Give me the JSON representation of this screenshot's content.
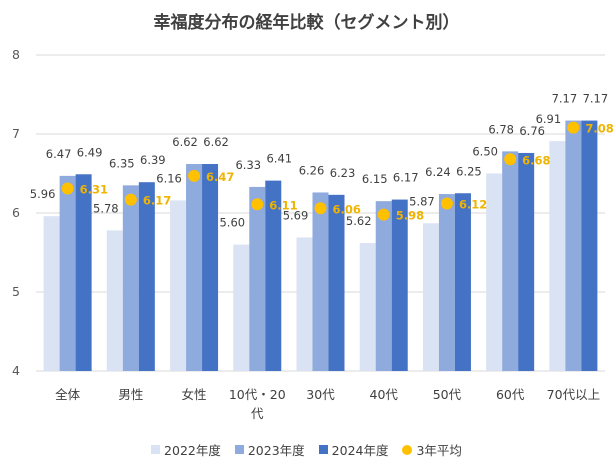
{
  "chart_data": {
    "type": "bar",
    "title": "幸福度分布の経年比較（セグメント別）",
    "categories": [
      "全体",
      "男性",
      "女性",
      "10代・20代",
      "30代",
      "40代",
      "50代",
      "60代",
      "70代以上"
    ],
    "series": [
      {
        "name": "2022年度",
        "color": "#dae3f3",
        "values": [
          5.96,
          5.78,
          6.16,
          5.6,
          5.69,
          5.62,
          5.87,
          6.5,
          6.91
        ]
      },
      {
        "name": "2023年度",
        "color": "#8faadc",
        "values": [
          6.47,
          6.35,
          6.62,
          6.33,
          6.26,
          6.15,
          6.24,
          6.78,
          7.17
        ]
      },
      {
        "name": "2024年度",
        "color": "#4472c4",
        "values": [
          6.49,
          6.39,
          6.62,
          6.41,
          6.23,
          6.17,
          6.25,
          6.76,
          7.17
        ]
      }
    ],
    "average": {
      "name": "3年平均",
      "color": "#ffc000",
      "label_color": "#f0b400",
      "values": [
        6.31,
        6.17,
        6.47,
        6.11,
        6.06,
        5.98,
        6.12,
        6.68,
        7.08
      ]
    },
    "ylim": [
      4,
      8
    ],
    "yticks": [
      4,
      5,
      6,
      7,
      8
    ],
    "grid": true,
    "legend": "bottom"
  }
}
